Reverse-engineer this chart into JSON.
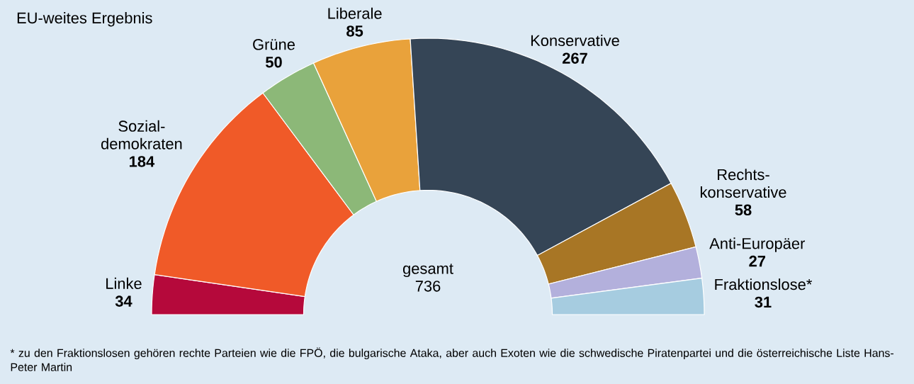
{
  "chart_data": {
    "type": "donut",
    "title": "EU-weites Ergebnis",
    "categories": [
      "Linke",
      "Sozial-demokraten",
      "Grüne",
      "Liberale",
      "Konservative",
      "Rechts-konservative",
      "Anti-Europäer",
      "Fraktionslose*"
    ],
    "values": [
      34,
      184,
      50,
      85,
      267,
      58,
      27,
      31
    ],
    "colors": [
      "#b5093b",
      "#f05a28",
      "#8cb878",
      "#e9a23b",
      "#354556",
      "#a87625",
      "#b3b0dc",
      "#a6cce0"
    ],
    "data_labels": true,
    "annotations": [
      "gesamt 736",
      "* zu den Fraktionslosen gehören rechte Parteien wie die FPÖ, die bulgarische Ataka, aber auch Exoten wie die schwedische Piratenpartei und die österreichische Liste Hans-Peter Martin"
    ]
  }
}
